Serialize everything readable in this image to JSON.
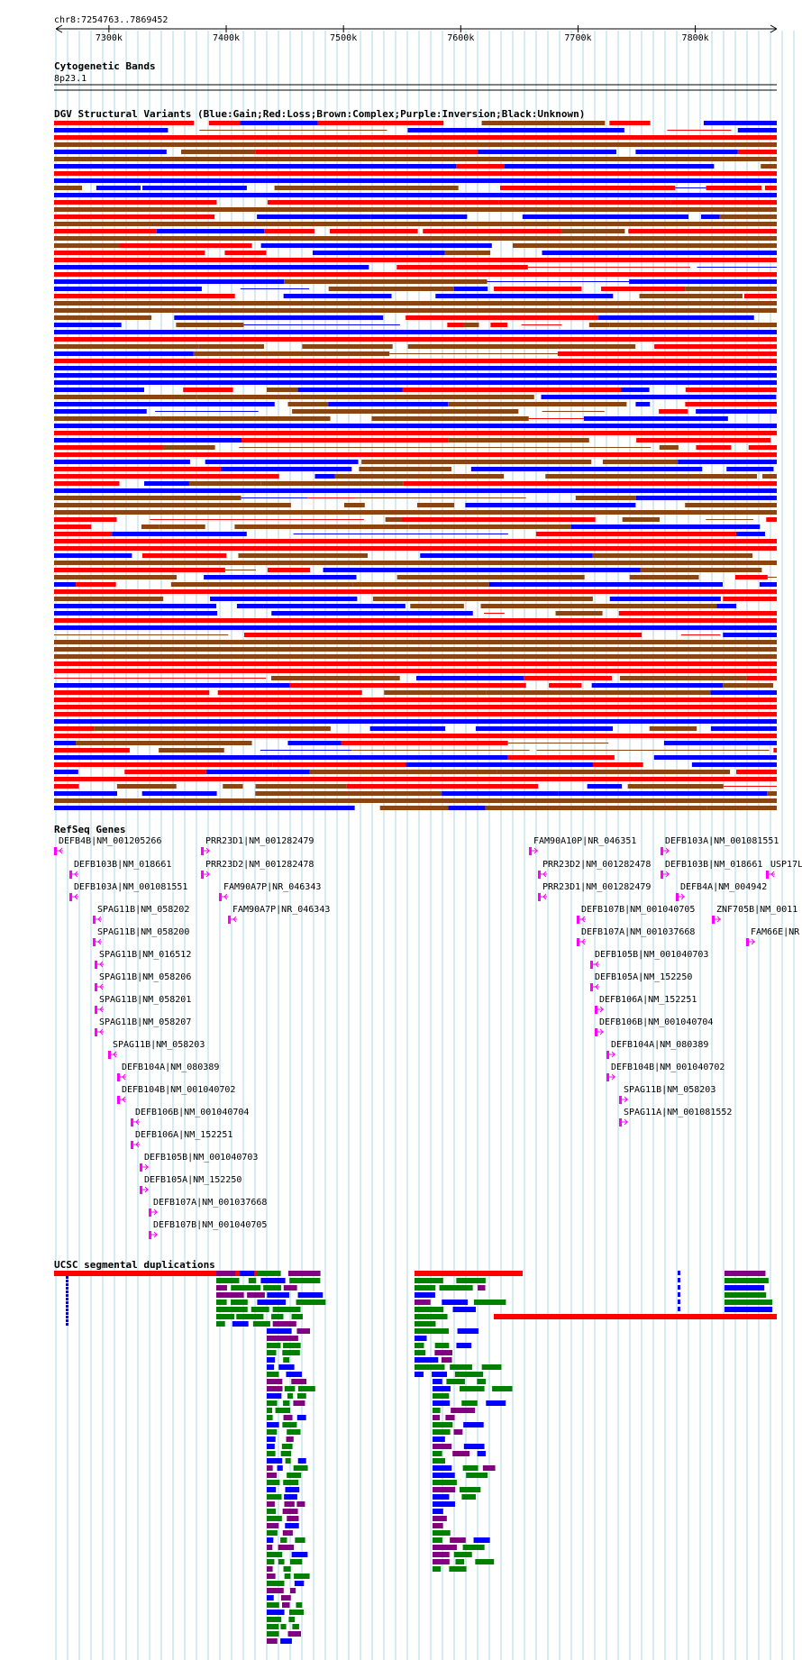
{
  "browser": {
    "position": "chr8:7254763..7869452",
    "ruler": {
      "ticks": [
        {
          "label": "7300k",
          "pos": 7300000
        },
        {
          "label": "7400k",
          "pos": 7400000
        },
        {
          "label": "7500k",
          "pos": 7500000
        },
        {
          "label": "7600k",
          "pos": 7600000
        },
        {
          "label": "7700k",
          "pos": 7700000
        },
        {
          "label": "7800k",
          "pos": 7800000
        }
      ]
    },
    "colors": {
      "gain": "#0000ff",
      "loss": "#ff0000",
      "complex": "#8b4513",
      "inversion": "#800080",
      "unknown": "#000000",
      "gene": "#ff00ff",
      "grid": "#add8e6",
      "seg_red": "#ff0000",
      "seg_green": "#008000",
      "seg_blue": "#0000ff",
      "seg_purple": "#800080"
    }
  },
  "tracks": {
    "cytobands": {
      "title": "Cytogenetic Bands",
      "band": "8p23.1"
    },
    "dgv": {
      "title": "DGV Structural Variants (Blue:Gain;Red:Loss;Brown:Complex;Purple:Inversion;Black:Unknown)"
    },
    "refseq": {
      "title": "RefSeq Genes",
      "genes": [
        {
          "label": "DEFB4B|NM_001205266",
          "strand": "-"
        },
        {
          "label": "DEFB103B|NM_018661",
          "strand": "-"
        },
        {
          "label": "DEFB103A|NM_001081551",
          "strand": "-"
        },
        {
          "label": "SPAG11B|NM_058202",
          "strand": "-"
        },
        {
          "label": "SPAG11B|NM_058200",
          "strand": "-"
        },
        {
          "label": "SPAG11B|NM_016512",
          "strand": "-"
        },
        {
          "label": "SPAG11B|NM_058206",
          "strand": "-"
        },
        {
          "label": "SPAG11B|NM_058201",
          "strand": "-"
        },
        {
          "label": "SPAG11B|NM_058207",
          "strand": "-"
        },
        {
          "label": "SPAG11B|NM_058203",
          "strand": "-"
        },
        {
          "label": "DEFB104A|NM_080389",
          "strand": "-"
        },
        {
          "label": "DEFB104B|NM_001040702",
          "strand": "-"
        },
        {
          "label": "DEFB106B|NM_001040704",
          "strand": "-"
        },
        {
          "label": "DEFB106A|NM_152251",
          "strand": "-"
        },
        {
          "label": "DEFB105B|NM_001040703",
          "strand": "+"
        },
        {
          "label": "DEFB105A|NM_152250",
          "strand": "+"
        },
        {
          "label": "DEFB107A|NM_001037668",
          "strand": "+"
        },
        {
          "label": "DEFB107B|NM_001040705",
          "strand": "+"
        },
        {
          "label": "PRR23D1|NM_001282479",
          "strand": "+"
        },
        {
          "label": "PRR23D2|NM_001282478",
          "strand": "+"
        },
        {
          "label": "FAM90A7P|NR_046343",
          "strand": "-"
        },
        {
          "label": "FAM90A7P|NR_046343",
          "strand": "-"
        },
        {
          "label": "FAM90A10P|NR_046351",
          "strand": "+"
        },
        {
          "label": "PRR23D2|NM_001282478",
          "strand": "-"
        },
        {
          "label": "PRR23D1|NM_001282479",
          "strand": "-"
        },
        {
          "label": "DEFB107B|NM_001040705",
          "strand": "-"
        },
        {
          "label": "DEFB107A|NM_001037668",
          "strand": "-"
        },
        {
          "label": "DEFB105B|NM_001040703",
          "strand": "-"
        },
        {
          "label": "DEFB105A|NM_152250",
          "strand": "-"
        },
        {
          "label": "DEFB106A|NM_152251",
          "strand": "+"
        },
        {
          "label": "DEFB106B|NM_001040704",
          "strand": "+"
        },
        {
          "label": "DEFB104A|NM_080389",
          "strand": "+"
        },
        {
          "label": "DEFB104B|NM_001040702",
          "strand": "+"
        },
        {
          "label": "SPAG11B|NM_058203",
          "strand": "+"
        },
        {
          "label": "SPAG11A|NM_001081552",
          "strand": "+"
        },
        {
          "label": "DEFB103A|NM_001081551",
          "strand": "+"
        },
        {
          "label": "DEFB103B|NM_018661",
          "strand": "+"
        },
        {
          "label": "DEFB4A|NM_004942",
          "strand": "+"
        },
        {
          "label": "USP17L",
          "strand": "-"
        },
        {
          "label": "ZNF705B|NM_0011",
          "strand": "+"
        },
        {
          "label": "FAM66E|NR",
          "strand": "+"
        }
      ]
    },
    "segdups": {
      "title": "UCSC segmental duplications"
    }
  }
}
